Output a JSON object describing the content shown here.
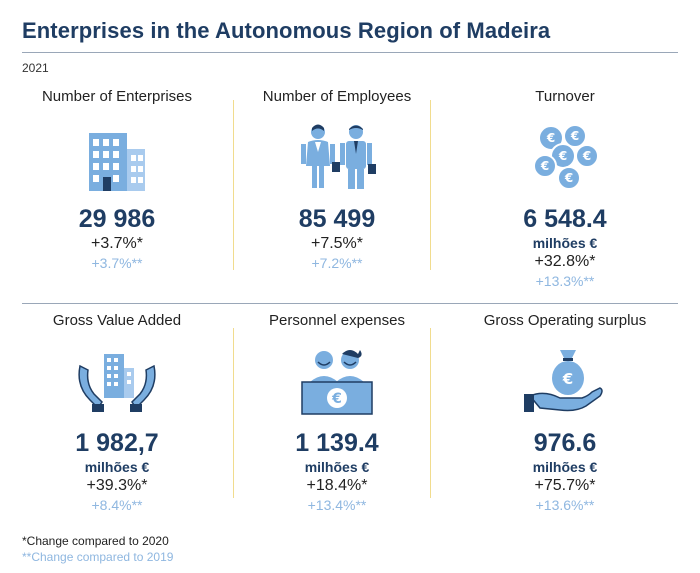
{
  "title": "Enterprises in the Autonomous Region of Madeira",
  "year": "2021",
  "colors": {
    "navy": "#1f3d63",
    "light_blue": "#8fb7e0",
    "icon_blue": "#7aaedf",
    "separator": "#f1dc8e"
  },
  "cards": [
    {
      "label": "Number of Enterprises",
      "icon": "office-building-icon",
      "value": "29 986",
      "unit": "",
      "change_2020": "+3.7%*",
      "change_2019": "+3.7%**"
    },
    {
      "label": "Number of Employees",
      "icon": "employees-icon",
      "value": "85 499",
      "unit": "",
      "change_2020": "+7.5%*",
      "change_2019": "+7.2%**"
    },
    {
      "label": "Turnover",
      "icon": "euro-coins-icon",
      "value": "6 548.4",
      "unit": "milhões €",
      "change_2020": "+32.8%*",
      "change_2019": "+13.3%**"
    },
    {
      "label": "Gross Value Added",
      "icon": "hands-building-icon",
      "value": "1 982,7",
      "unit": "milhões €",
      "change_2020": "+39.3%*",
      "change_2019": "+8.4%**"
    },
    {
      "label": "Personnel expenses",
      "icon": "people-euro-desk-icon",
      "value": "1 139.4",
      "unit": "milhões €",
      "change_2020": "+18.4%*",
      "change_2019": "+13.4%**"
    },
    {
      "label": "Gross Operating surplus",
      "icon": "hand-money-bag-icon",
      "value": "976.6",
      "unit": "milhões €",
      "change_2020": "+75.7%*",
      "change_2019": "+13.6%**"
    }
  ],
  "notes": {
    "n1": "*Change compared to 2020",
    "n2": "**Change compared to 2019"
  }
}
